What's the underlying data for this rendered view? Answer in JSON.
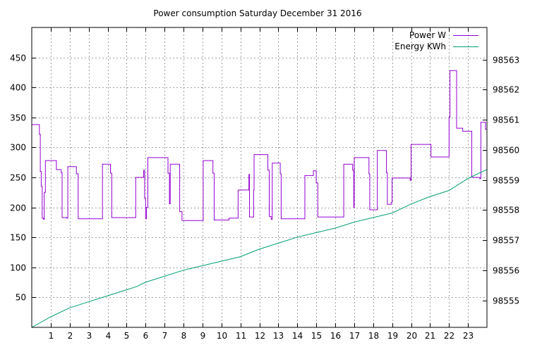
{
  "chart_data": {
    "type": "line",
    "title": "Power consumption Saturday December 31 2016",
    "grid": true,
    "legend_placement": "top-right",
    "x_axis": {
      "range": [
        0,
        24
      ],
      "ticks": [
        1,
        2,
        3,
        4,
        5,
        6,
        7,
        8,
        9,
        10,
        11,
        12,
        13,
        14,
        15,
        16,
        17,
        18,
        19,
        20,
        21,
        22,
        23
      ],
      "tick_labels": [
        "1",
        "2",
        "3",
        "4",
        "5",
        "6",
        "7",
        "8",
        "9",
        "10",
        "11",
        "12",
        "13",
        "14",
        "15",
        "16",
        "17",
        "18",
        "19",
        "20",
        "21",
        "22",
        "23"
      ]
    },
    "y_axis_left": {
      "range": [
        0,
        500
      ],
      "ticks": [
        50,
        100,
        150,
        200,
        250,
        300,
        350,
        400,
        450
      ],
      "tick_labels": [
        "50",
        "100",
        "150",
        "200",
        "250",
        "300",
        "350",
        "400",
        "450"
      ]
    },
    "y_axis_right": {
      "range": [
        98554.1,
        98564.07
      ],
      "ticks": [
        98555,
        98556,
        98557,
        98558,
        98559,
        98560,
        98561,
        98562,
        98563
      ],
      "tick_labels": [
        "98555",
        "98556",
        "98557",
        "98558",
        "98559",
        "98560",
        "98561",
        "98562",
        "98563"
      ]
    },
    "series": [
      {
        "name": "Power W",
        "axis": "left",
        "color": "#9400d3",
        "step": true,
        "points": [
          [
            0.0,
            338
          ],
          [
            0.4,
            322
          ],
          [
            0.45,
            260
          ],
          [
            0.5,
            235
          ],
          [
            0.55,
            182
          ],
          [
            0.62,
            180
          ],
          [
            0.66,
            225
          ],
          [
            0.72,
            278
          ],
          [
            1.3,
            263
          ],
          [
            1.55,
            258
          ],
          [
            1.6,
            183
          ],
          [
            1.85,
            182
          ],
          [
            1.9,
            268
          ],
          [
            2.35,
            256
          ],
          [
            2.45,
            181
          ],
          [
            3.7,
            181
          ],
          [
            3.73,
            272
          ],
          [
            4.15,
            257
          ],
          [
            4.22,
            183
          ],
          [
            5.45,
            183
          ],
          [
            5.48,
            250
          ],
          [
            5.9,
            262
          ],
          [
            5.95,
            215
          ],
          [
            6.0,
            181
          ],
          [
            6.05,
            200
          ],
          [
            6.12,
            283
          ],
          [
            7.18,
            257
          ],
          [
            7.26,
            206
          ],
          [
            7.3,
            272
          ],
          [
            7.8,
            193
          ],
          [
            7.92,
            178
          ],
          [
            9.0,
            178
          ],
          [
            9.04,
            278
          ],
          [
            9.55,
            257
          ],
          [
            9.62,
            179
          ],
          [
            10.4,
            182
          ],
          [
            10.88,
            229
          ],
          [
            11.45,
            255
          ],
          [
            11.48,
            184
          ],
          [
            11.7,
            229
          ],
          [
            11.72,
            288
          ],
          [
            12.45,
            262
          ],
          [
            12.52,
            185
          ],
          [
            12.62,
            180
          ],
          [
            12.68,
            274
          ],
          [
            13.1,
            256
          ],
          [
            13.15,
            181
          ],
          [
            14.35,
            181
          ],
          [
            14.4,
            253
          ],
          [
            14.85,
            261
          ],
          [
            15.0,
            241
          ],
          [
            15.08,
            184
          ],
          [
            16.4,
            184
          ],
          [
            16.45,
            272
          ],
          [
            16.92,
            262
          ],
          [
            16.98,
            200
          ],
          [
            17.0,
            283
          ],
          [
            17.78,
            256
          ],
          [
            17.82,
            196
          ],
          [
            18.18,
            196
          ],
          [
            18.22,
            295
          ],
          [
            18.7,
            258
          ],
          [
            18.75,
            205
          ],
          [
            18.95,
            208
          ],
          [
            19.0,
            249
          ],
          [
            19.95,
            245
          ],
          [
            20.0,
            305
          ],
          [
            21.05,
            284
          ],
          [
            21.95,
            284
          ],
          [
            22.0,
            350
          ],
          [
            22.05,
            428
          ],
          [
            22.4,
            332
          ],
          [
            22.72,
            327
          ],
          [
            23.2,
            250
          ],
          [
            23.62,
            248
          ],
          [
            23.68,
            342
          ],
          [
            23.92,
            330
          ],
          [
            24.0,
            250
          ]
        ]
      },
      {
        "name": "Energy KWh",
        "axis": "right",
        "color": "#009e73",
        "step": false,
        "points": [
          [
            0.0,
            98554.1
          ],
          [
            1.0,
            98554.45
          ],
          [
            2.0,
            98554.75
          ],
          [
            3.0,
            98554.95
          ],
          [
            4.0,
            98555.15
          ],
          [
            5.0,
            98555.35
          ],
          [
            5.5,
            98555.45
          ],
          [
            6.0,
            98555.6
          ],
          [
            7.0,
            98555.8
          ],
          [
            8.0,
            98556.0
          ],
          [
            9.0,
            98556.15
          ],
          [
            10.0,
            98556.3
          ],
          [
            11.0,
            98556.45
          ],
          [
            12.0,
            98556.7
          ],
          [
            13.0,
            98556.9
          ],
          [
            14.0,
            98557.1
          ],
          [
            15.0,
            98557.25
          ],
          [
            16.0,
            98557.4
          ],
          [
            17.0,
            98557.6
          ],
          [
            18.0,
            98557.75
          ],
          [
            19.0,
            98557.9
          ],
          [
            20.0,
            98558.2
          ],
          [
            21.0,
            98558.45
          ],
          [
            22.0,
            98558.65
          ],
          [
            23.0,
            98559.05
          ],
          [
            24.0,
            98559.35
          ]
        ]
      }
    ]
  }
}
